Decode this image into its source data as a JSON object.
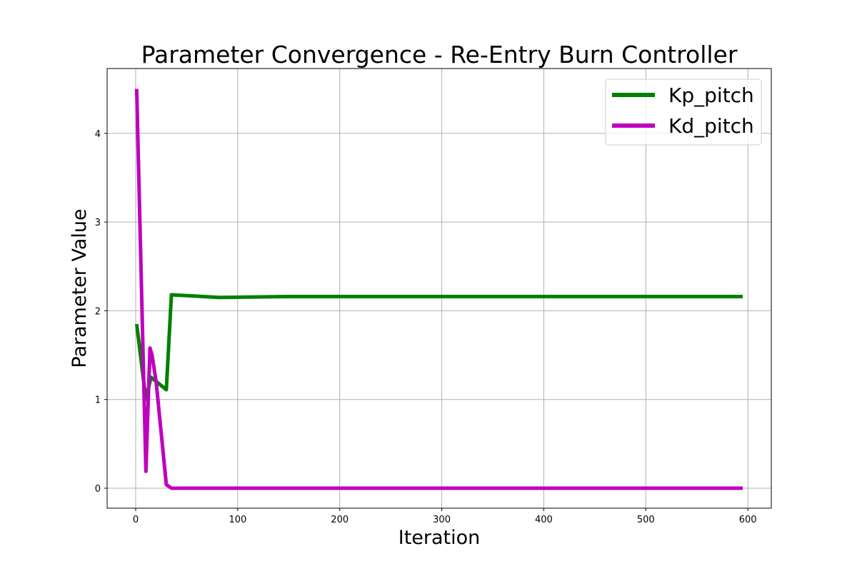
{
  "chart_data": {
    "type": "line",
    "title": "Parameter Convergence - Re-Entry Burn Controller",
    "xlabel": "Iteration",
    "ylabel": "Parameter Value",
    "xlim": [
      -28,
      623
    ],
    "ylim": [
      -0.225,
      4.73
    ],
    "xticks": [
      0,
      100,
      200,
      300,
      400,
      500,
      600
    ],
    "yticks": [
      0,
      1,
      2,
      3,
      4
    ],
    "grid": true,
    "legend_position": "top-right",
    "series": [
      {
        "name": "Kp_pitch",
        "color": "#008000",
        "x": [
          1,
          10,
          15,
          30,
          35,
          82,
          150,
          300,
          595
        ],
        "y": [
          1.85,
          1.0,
          1.25,
          1.11,
          2.18,
          2.15,
          2.16,
          2.16,
          2.16
        ]
      },
      {
        "name": "Kd_pitch",
        "color": "#bf00bf",
        "x": [
          1,
          10,
          14,
          16,
          20,
          30,
          35,
          100,
          595
        ],
        "y": [
          4.5,
          0.19,
          1.58,
          1.5,
          1.2,
          0.04,
          0.0,
          0.0,
          0.0
        ]
      }
    ]
  }
}
